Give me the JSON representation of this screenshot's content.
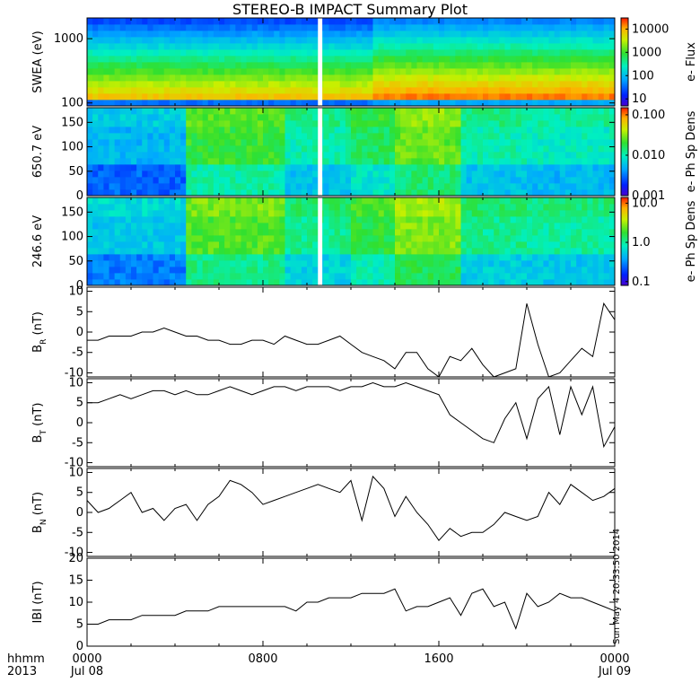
{
  "title": "STEREO-B IMPACT Summary Plot",
  "stamp": "Sun May  4 20:33:50 2014",
  "time_axis": {
    "row1_label": "hhmm",
    "row2_label": "2013",
    "ticks": [
      {
        "hour": 0,
        "top": "0000",
        "bottom": "Jul 08"
      },
      {
        "hour": 8,
        "top": "0800",
        "bottom": ""
      },
      {
        "hour": 16,
        "top": "1600",
        "bottom": ""
      },
      {
        "hour": 24,
        "top": "0000",
        "bottom": "Jul 09"
      }
    ]
  },
  "colors": {
    "line": "#000000",
    "gap": "#ffffff",
    "background": "#ffffff"
  },
  "chart_data": [
    {
      "type": "heatmap",
      "ylabel": "SWEA (eV)",
      "yscale": "log",
      "ylim": [
        90,
        2100
      ],
      "y_ticks": [
        {
          "v": 100,
          "label": "100"
        },
        {
          "v": 1000,
          "label": "1000"
        }
      ],
      "cbar_label": "e- Flux",
      "cbar_scale": "log",
      "cbar_range": [
        5,
        30000
      ],
      "cbar_ticks": [
        {
          "v": 10,
          "label": "10"
        },
        {
          "v": 100,
          "label": "100"
        },
        {
          "v": 1000,
          "label": "1000"
        },
        {
          "v": 10000,
          "label": "10000"
        }
      ],
      "data_gap_hours": [
        10.5,
        10.7
      ]
    },
    {
      "type": "heatmap",
      "ylabel": "650.7 eV",
      "ylim": [
        0,
        180
      ],
      "y_ticks": [
        {
          "v": 0,
          "label": "0"
        },
        {
          "v": 50,
          "label": "50"
        },
        {
          "v": 100,
          "label": "100"
        },
        {
          "v": 150,
          "label": "150"
        }
      ],
      "cbar_label": "e- Ph Sp Dens",
      "cbar_scale": "log",
      "cbar_range": [
        0.001,
        0.15
      ],
      "cbar_ticks": [
        {
          "v": 0.001,
          "label": "0.001"
        },
        {
          "v": 0.01,
          "label": "0.010"
        },
        {
          "v": 0.1,
          "label": "0.100"
        }
      ],
      "data_gap_hours": [
        10.5,
        10.7
      ]
    },
    {
      "type": "heatmap",
      "ylabel": "246.6 eV",
      "ylim": [
        0,
        180
      ],
      "y_ticks": [
        {
          "v": 0,
          "label": "0"
        },
        {
          "v": 50,
          "label": "50"
        },
        {
          "v": 100,
          "label": "100"
        },
        {
          "v": 150,
          "label": "150"
        }
      ],
      "cbar_label": "e- Ph Sp Dens",
      "cbar_scale": "log",
      "cbar_range": [
        0.08,
        14
      ],
      "cbar_ticks": [
        {
          "v": 0.1,
          "label": "0.1"
        },
        {
          "v": 1,
          "label": "1.0"
        },
        {
          "v": 10,
          "label": "10.0"
        }
      ],
      "data_gap_hours": [
        10.5,
        10.7
      ]
    },
    {
      "type": "line",
      "ylabel": "B",
      "ylabel_sub": "R",
      "ylabel_unit": "(nT)",
      "ylim": [
        -11,
        11
      ],
      "y_ticks": [
        {
          "v": -10,
          "label": "-10"
        },
        {
          "v": -5,
          "label": "-5"
        },
        {
          "v": 0,
          "label": "0"
        },
        {
          "v": 5,
          "label": "5"
        },
        {
          "v": 10,
          "label": "10"
        }
      ],
      "x": [
        0,
        0.5,
        1,
        1.5,
        2,
        2.5,
        3,
        3.5,
        4,
        4.5,
        5,
        5.5,
        6,
        6.5,
        7,
        7.5,
        8,
        8.5,
        9,
        9.5,
        10,
        10.5,
        11,
        11.5,
        12,
        12.5,
        13,
        13.5,
        14,
        14.5,
        15,
        15.5,
        16,
        16.5,
        17,
        17.5,
        18,
        18.5,
        19,
        19.5,
        20,
        20.5,
        21,
        21.5,
        22,
        22.5,
        23,
        23.5,
        24
      ],
      "y": [
        -2,
        -2,
        -1,
        -1,
        -1,
        0,
        0,
        1,
        0,
        -1,
        -1,
        -2,
        -2,
        -3,
        -3,
        -2,
        -2,
        -3,
        -1,
        -2,
        -3,
        -3,
        -2,
        -1,
        -3,
        -5,
        -6,
        -7,
        -9,
        -5,
        -5,
        -9,
        -12,
        -6,
        -7,
        -4,
        -8,
        -11,
        -10,
        -9,
        7,
        -3,
        -11,
        -10,
        -7,
        -4,
        -6,
        7,
        3
      ]
    },
    {
      "type": "line",
      "ylabel": "B",
      "ylabel_sub": "T",
      "ylabel_unit": "(nT)",
      "ylim": [
        -11,
        11
      ],
      "y_ticks": [
        {
          "v": -10,
          "label": "-10"
        },
        {
          "v": -5,
          "label": "-5"
        },
        {
          "v": 0,
          "label": "0"
        },
        {
          "v": 5,
          "label": "5"
        },
        {
          "v": 10,
          "label": "10"
        }
      ],
      "x": [
        0,
        0.5,
        1,
        1.5,
        2,
        2.5,
        3,
        3.5,
        4,
        4.5,
        5,
        5.5,
        6,
        6.5,
        7,
        7.5,
        8,
        8.5,
        9,
        9.5,
        10,
        10.5,
        11,
        11.5,
        12,
        12.5,
        13,
        13.5,
        14,
        14.5,
        15,
        15.5,
        16,
        16.5,
        17,
        17.5,
        18,
        18.5,
        19,
        19.5,
        20,
        20.5,
        21,
        21.5,
        22,
        22.5,
        23,
        23.5,
        24
      ],
      "y": [
        5,
        5,
        6,
        7,
        6,
        7,
        8,
        8,
        7,
        8,
        7,
        7,
        8,
        9,
        8,
        7,
        8,
        9,
        9,
        8,
        9,
        9,
        9,
        8,
        9,
        9,
        10,
        9,
        9,
        10,
        9,
        8,
        7,
        2,
        0,
        -2,
        -4,
        -5,
        1,
        5,
        -4,
        6,
        9,
        -3,
        9,
        2,
        9,
        -6,
        -1
      ]
    },
    {
      "type": "line",
      "ylabel": "B",
      "ylabel_sub": "N",
      "ylabel_unit": "(nT)",
      "ylim": [
        -11,
        11
      ],
      "y_ticks": [
        {
          "v": -10,
          "label": "-10"
        },
        {
          "v": -5,
          "label": "-5"
        },
        {
          "v": 0,
          "label": "0"
        },
        {
          "v": 5,
          "label": "5"
        },
        {
          "v": 10,
          "label": "10"
        }
      ],
      "x": [
        0,
        0.5,
        1,
        1.5,
        2,
        2.5,
        3,
        3.5,
        4,
        4.5,
        5,
        5.5,
        6,
        6.5,
        7,
        7.5,
        8,
        8.5,
        9,
        9.5,
        10,
        10.5,
        11,
        11.5,
        12,
        12.5,
        13,
        13.5,
        14,
        14.5,
        15,
        15.5,
        16,
        16.5,
        17,
        17.5,
        18,
        18.5,
        19,
        19.5,
        20,
        20.5,
        21,
        21.5,
        22,
        22.5,
        23,
        23.5,
        24
      ],
      "y": [
        3,
        0,
        1,
        3,
        5,
        0,
        1,
        -2,
        1,
        2,
        -2,
        2,
        4,
        8,
        7,
        5,
        2,
        3,
        4,
        5,
        6,
        7,
        6,
        5,
        8,
        -2,
        9,
        6,
        -1,
        4,
        0,
        -3,
        -7,
        -4,
        -6,
        -5,
        -5,
        -3,
        0,
        -1,
        -2,
        -1,
        5,
        2,
        7,
        5,
        3,
        4,
        6
      ]
    },
    {
      "type": "line",
      "ylabel": "IBI",
      "ylabel_unit": "(nT)",
      "ylim": [
        0,
        20
      ],
      "y_ticks": [
        {
          "v": 0,
          "label": "0"
        },
        {
          "v": 5,
          "label": "5"
        },
        {
          "v": 10,
          "label": "10"
        },
        {
          "v": 15,
          "label": "15"
        },
        {
          "v": 20,
          "label": "20"
        }
      ],
      "x": [
        0,
        0.5,
        1,
        1.5,
        2,
        2.5,
        3,
        3.5,
        4,
        4.5,
        5,
        5.5,
        6,
        6.5,
        7,
        7.5,
        8,
        8.5,
        9,
        9.5,
        10,
        10.5,
        11,
        11.5,
        12,
        12.5,
        13,
        13.5,
        14,
        14.5,
        15,
        15.5,
        16,
        16.5,
        17,
        17.5,
        18,
        18.5,
        19,
        19.5,
        20,
        20.5,
        21,
        21.5,
        22,
        22.5,
        23,
        23.5,
        24
      ],
      "y": [
        5,
        5,
        6,
        6,
        6,
        7,
        7,
        7,
        7,
        8,
        8,
        8,
        9,
        9,
        9,
        9,
        9,
        9,
        9,
        8,
        10,
        10,
        11,
        11,
        11,
        12,
        12,
        12,
        13,
        8,
        9,
        9,
        10,
        11,
        7,
        12,
        13,
        9,
        10,
        4,
        12,
        9,
        10,
        12,
        11,
        11,
        10,
        9,
        8
      ]
    }
  ]
}
